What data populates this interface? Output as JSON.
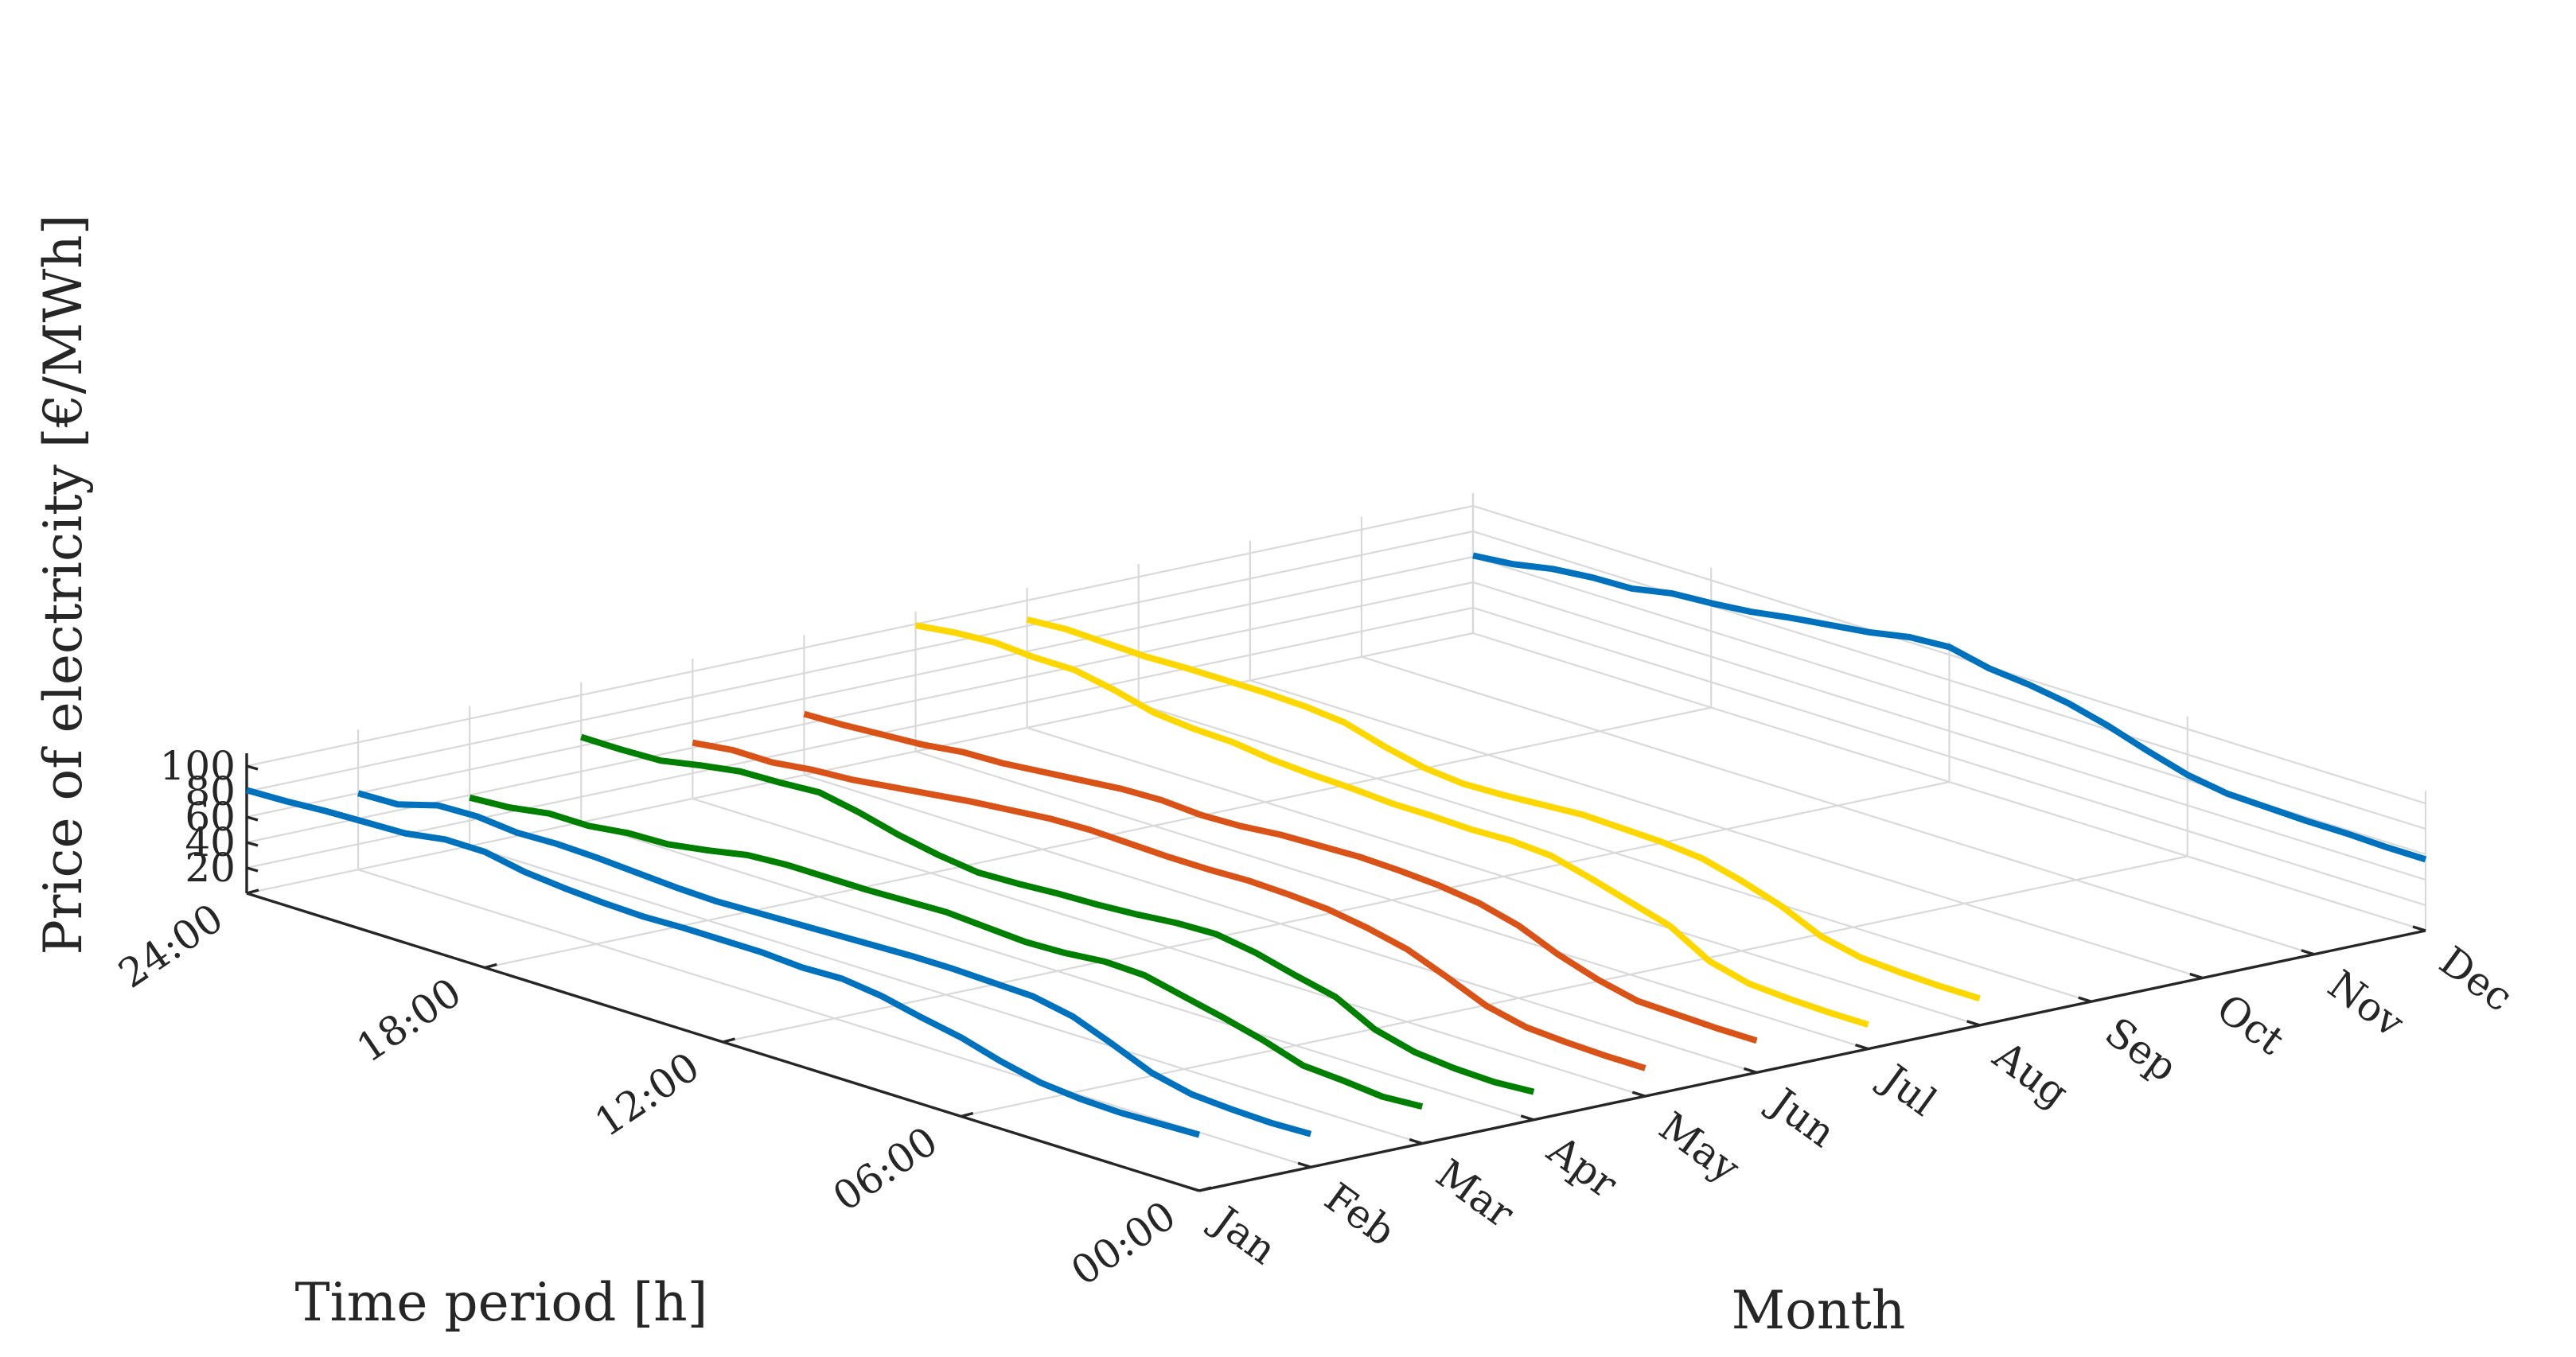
{
  "chart_data": {
    "type": "line3d",
    "title": "",
    "xlabel": "Time period [h]",
    "ylabel": "Month",
    "zlabel": "Price of electricity [€/MWh]",
    "time_ticks": [
      "00:00",
      "06:00",
      "12:00",
      "18:00",
      "24:00"
    ],
    "time_tick_values": [
      0,
      6,
      12,
      18,
      24
    ],
    "months": [
      "Jan",
      "Feb",
      "Mar",
      "Apr",
      "May",
      "Jun",
      "Jul",
      "Aug",
      "Sep",
      "Oct",
      "Nov",
      "Dec"
    ],
    "z_ticks": [
      20,
      40,
      60,
      80,
      100
    ],
    "zlim": [
      0,
      110
    ],
    "grid": true,
    "hours": [
      0,
      1,
      2,
      3,
      4,
      5,
      6,
      7,
      8,
      9,
      10,
      11,
      12,
      13,
      14,
      15,
      16,
      17,
      18,
      19,
      20,
      21,
      22,
      23,
      24
    ],
    "series": [
      {
        "name": "Jan",
        "color": "#0072BD",
        "values": [
          44,
          43,
          42,
          43,
          46,
          53,
          62,
          68,
          75,
          79,
          78,
          80,
          80,
          80,
          79,
          80,
          82,
          85,
          91,
          91,
          86,
          85,
          84,
          82,
          81
        ]
      },
      {
        "name": "Feb",
        "color": "#0072BD",
        "values": [
          26,
          25,
          26,
          28,
          35,
          48,
          60,
          66,
          67,
          68,
          68,
          67,
          66,
          65,
          64,
          63,
          64,
          66,
          68,
          69,
          68,
          71,
          70,
          61,
          60
        ]
      },
      {
        "name": "Mar",
        "color": "#007F00",
        "values": [
          29,
          27,
          30,
          32,
          42,
          50,
          57,
          64,
          65,
          62,
          61,
          63,
          65,
          64,
          63,
          63,
          63,
          61,
          55,
          50,
          49,
          45,
          45,
          40,
          38
        ]
      },
      {
        "name": "Apr",
        "color": "#007F00",
        "values": [
          22,
          20,
          21,
          24,
          32,
          48,
          55,
          63,
          68,
          67,
          64,
          62,
          61,
          59,
          58,
          62,
          68,
          76,
          82,
          80,
          79,
          74,
          68,
          67,
          67
        ]
      },
      {
        "name": "May",
        "color": "#D95319",
        "values": [
          22,
          22,
          23,
          25,
          32,
          45,
          57,
          64,
          69,
          71,
          72,
          71,
          71,
          72,
          73,
          72,
          69,
          66,
          62,
          58,
          54,
          52,
          48,
          48,
          44
        ]
      },
      {
        "name": "Jun",
        "color": "#D95319",
        "values": [
          25,
          25,
          26,
          27,
          34,
          44,
          57,
          65,
          69,
          71,
          72,
          71,
          70,
          67,
          66,
          68,
          67,
          64,
          61,
          58,
          57,
          53,
          51,
          49,
          48
        ]
      },
      {
        "name": "Jul",
        "color": "#FFD700",
        "values": [
          19,
          19,
          20,
          22,
          30,
          48,
          57,
          66,
          74,
          76,
          75,
          76,
          76,
          78,
          79,
          81,
          85,
          86,
          89,
          97,
          103,
          103,
          105,
          103,
          99
        ]
      },
      {
        "name": "Aug",
        "color": "#FFD700",
        "values": [
          21,
          21,
          22,
          24,
          31,
          45,
          55,
          63,
          66,
          67,
          68,
          66,
          64,
          63,
          66,
          73,
          82,
          85,
          86,
          86,
          86,
          85,
          86,
          87,
          85
        ]
      },
      {
        "name": "Dec",
        "color": "#0072BD",
        "values": [
          56,
          56,
          57,
          57,
          58,
          59,
          64,
          73,
          83,
          91,
          96,
          99,
          106,
          104,
          98,
          94,
          90,
          85,
          82,
          80,
          74,
          73,
          70,
          64,
          61
        ]
      }
    ]
  }
}
